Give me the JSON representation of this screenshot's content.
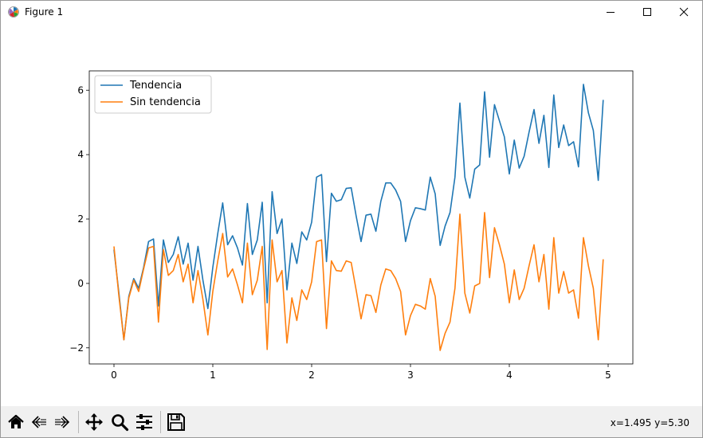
{
  "window": {
    "title": "Figure 1"
  },
  "toolbar": {
    "buttons": [
      "home-icon",
      "back-icon",
      "forward-icon",
      "pan-icon",
      "zoom-icon",
      "configure-subplots-icon",
      "save-icon"
    ],
    "coords": "x=1.495 y=5.30"
  },
  "chart_data": {
    "type": "line",
    "x_start": 0,
    "x_step": 0.05,
    "xlim": [
      -0.25,
      5.25
    ],
    "ylim": [
      -2.5,
      6.6
    ],
    "xticks": [
      0,
      1,
      2,
      3,
      4,
      5
    ],
    "yticks": [
      -2,
      0,
      2,
      4,
      6
    ],
    "xlabel": "",
    "ylabel": "",
    "title": "",
    "legend_position": "top-left",
    "series": [
      {
        "name": "Tendencia",
        "color": "#1f77b4",
        "values": [
          1.05,
          -0.3,
          -1.75,
          -0.4,
          0.15,
          -0.15,
          0.5,
          1.3,
          1.38,
          -0.7,
          1.35,
          0.65,
          0.9,
          1.45,
          0.6,
          1.25,
          0.1,
          1.15,
          0.1,
          -0.78,
          0.5,
          1.55,
          2.5,
          1.2,
          1.48,
          1.1,
          0.57,
          2.48,
          0.9,
          1.35,
          2.52,
          -0.6,
          2.85,
          1.55,
          2.0,
          -0.2,
          1.25,
          0.62,
          1.6,
          1.35,
          1.9,
          3.3,
          3.38,
          0.68,
          2.8,
          2.55,
          2.6,
          2.95,
          2.97,
          2.1,
          1.3,
          2.12,
          2.15,
          1.62,
          2.55,
          3.12,
          3.12,
          2.9,
          2.55,
          1.3,
          1.95,
          2.35,
          2.32,
          2.28,
          3.3,
          2.78,
          1.18,
          1.78,
          2.2,
          3.3,
          5.6,
          3.3,
          2.65,
          3.55,
          3.68,
          5.95,
          3.92,
          5.55,
          5.05,
          4.55,
          3.4,
          4.45,
          3.58,
          3.95,
          4.7,
          5.4,
          4.35,
          5.22,
          3.6,
          5.85,
          4.22,
          4.92,
          4.28,
          4.4,
          3.62,
          6.18,
          5.3,
          4.75,
          3.2,
          5.7
        ]
      },
      {
        "name": "Sin tendencia",
        "color": "#ff7f0e",
        "values": [
          1.15,
          -0.4,
          -1.75,
          -0.45,
          0.1,
          -0.25,
          0.45,
          1.1,
          1.15,
          -1.2,
          1.05,
          0.25,
          0.4,
          0.9,
          0.05,
          0.6,
          -0.6,
          0.4,
          -0.5,
          -1.6,
          -0.25,
          0.7,
          1.55,
          0.2,
          0.45,
          -0.05,
          -0.6,
          1.25,
          -0.35,
          0.1,
          1.15,
          -2.05,
          1.35,
          0.05,
          0.4,
          -1.85,
          -0.45,
          -1.15,
          -0.2,
          -0.5,
          0.05,
          1.3,
          1.35,
          -1.4,
          0.7,
          0.4,
          0.38,
          0.7,
          0.65,
          -0.2,
          -1.1,
          -0.35,
          -0.38,
          -0.9,
          -0.05,
          0.45,
          0.4,
          0.15,
          -0.25,
          -1.6,
          -1.0,
          -0.65,
          -0.7,
          -0.8,
          0.15,
          -0.4,
          -2.08,
          -1.55,
          -1.2,
          -0.15,
          2.15,
          -0.3,
          -0.92,
          -0.08,
          0.0,
          2.2,
          0.18,
          1.73,
          1.2,
          0.6,
          -0.6,
          0.42,
          -0.5,
          -0.15,
          0.55,
          1.2,
          0.05,
          0.9,
          -0.8,
          1.42,
          -0.3,
          0.37,
          -0.3,
          -0.2,
          -1.08,
          1.42,
          0.55,
          -0.15,
          -1.75,
          0.75
        ]
      }
    ]
  }
}
